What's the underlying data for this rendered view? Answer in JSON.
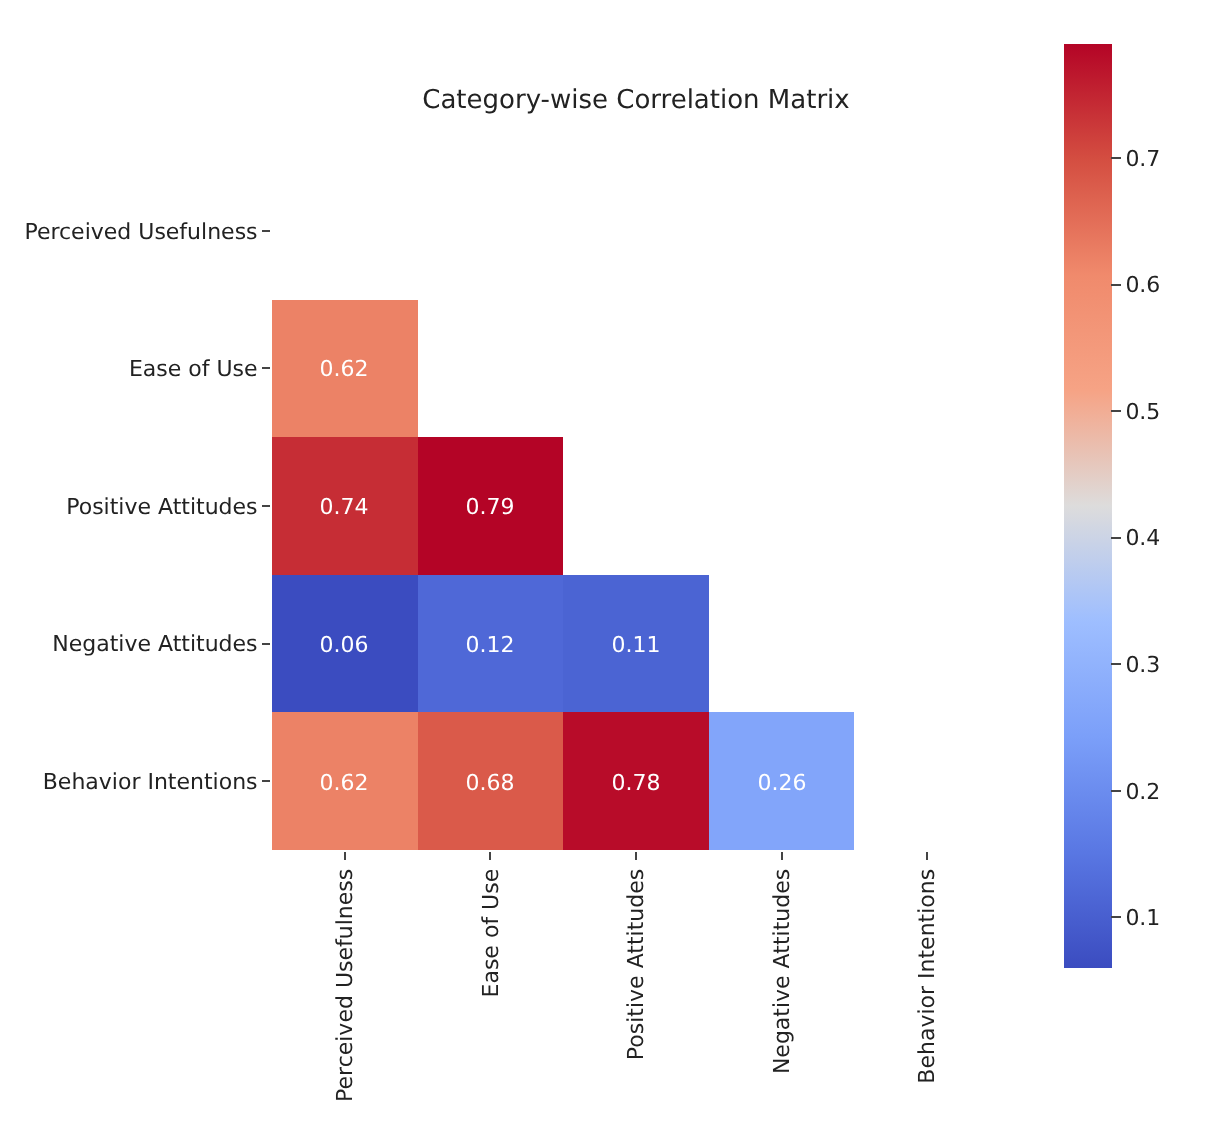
{
  "chart_data": {
    "type": "heatmap",
    "title": "Category-wise Correlation Matrix",
    "categories": [
      "Perceived Usefulness",
      "Ease of Use",
      "Positive Attitudes",
      "Negative Attitudes",
      "Behavior Intentions"
    ],
    "y_categories": [
      "Perceived Usefulness",
      "Ease of Use",
      "Positive Attitudes",
      "Negative Attitudes",
      "Behavior Intentions"
    ],
    "cells": [
      [
        null,
        null,
        null,
        null,
        null
      ],
      [
        0.62,
        null,
        null,
        null,
        null
      ],
      [
        0.74,
        0.79,
        null,
        null,
        null
      ],
      [
        0.06,
        0.12,
        0.11,
        null,
        null
      ],
      [
        0.62,
        0.68,
        0.78,
        0.26,
        null
      ]
    ],
    "data_labels": true,
    "clim": [
      0.06,
      0.79
    ],
    "cticks": [
      0.1,
      0.2,
      0.3,
      0.4,
      0.5,
      0.6,
      0.7
    ]
  }
}
